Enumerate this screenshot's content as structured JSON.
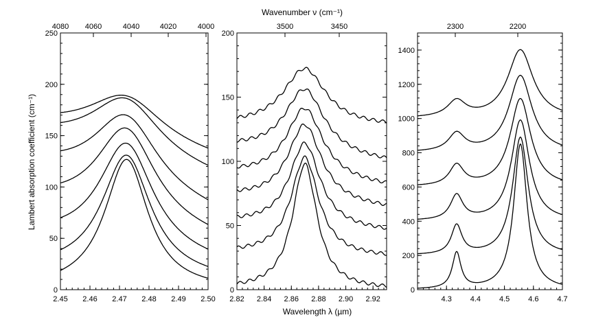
{
  "chart_data": {
    "type": "line",
    "top_label": "Wavenumber ν (cm⁻¹)",
    "bottom_label": "Wavelength λ (µm)",
    "y_label": "Lambert absorption coefficient (cm⁻¹)",
    "panels": [
      {
        "id": "left",
        "xlim": [
          2.45,
          2.5
        ],
        "ylim": [
          0,
          250
        ],
        "x_ticks": [
          "2.45",
          "2.46",
          "2.47",
          "2.48",
          "2.49",
          "2.50"
        ],
        "y_ticks": [
          0,
          50,
          100,
          150,
          200,
          250
        ],
        "top_ticks": [
          "4080",
          "4060",
          "4040",
          "4020",
          "4000"
        ],
        "profile": {
          "peak": 2.4725,
          "width": 0.009,
          "shape": "single"
        },
        "series": [
          {
            "offset": 0,
            "amplitude": 136,
            "right": 0
          },
          {
            "offset": 18,
            "amplitude": 125,
            "right": 10
          },
          {
            "offset": 48,
            "amplitude": 112,
            "right": 26
          },
          {
            "offset": 82,
            "amplitude": 96,
            "right": 50
          },
          {
            "offset": 115,
            "amplitude": 78,
            "right": 75
          },
          {
            "offset": 145,
            "amplitude": 61,
            "right": 110
          },
          {
            "offset": 157,
            "amplitude": 48,
            "right": 128
          }
        ]
      },
      {
        "id": "middle",
        "xlim": [
          2.82,
          2.93
        ],
        "ylim": [
          0,
          200
        ],
        "x_ticks": [
          "2.82",
          "2.84",
          "2.86",
          "2.88",
          "2.90",
          "2.92"
        ],
        "y_ticks": [
          0,
          50,
          100,
          150,
          200
        ],
        "top_ticks": [
          "3500",
          "3450"
        ],
        "profile": {
          "peak": 2.87,
          "width": 0.011,
          "shape": "single"
        },
        "series": [
          {
            "offset": 0,
            "amplitude": 105,
            "right": 0
          },
          {
            "offset": 28,
            "amplitude": 82,
            "right": 25
          },
          {
            "offset": 52,
            "amplitude": 70,
            "right": 45
          },
          {
            "offset": 72,
            "amplitude": 65,
            "right": 63
          },
          {
            "offset": 90,
            "amplitude": 60,
            "right": 80
          },
          {
            "offset": 110,
            "amplitude": 55,
            "right": 99
          },
          {
            "offset": 128,
            "amplitude": 48,
            "right": 127
          }
        ]
      },
      {
        "id": "right",
        "xlim": [
          4.2,
          4.7
        ],
        "ylim": [
          0,
          1500
        ],
        "x_ticks": [
          "4.3",
          "4.4",
          "4.5",
          "4.6",
          "4.7"
        ],
        "y_ticks": [
          0,
          200,
          400,
          600,
          800,
          1000,
          1200,
          1400
        ],
        "top_ticks": [
          "2300",
          "2200"
        ],
        "profile": {
          "peak1": 4.335,
          "peak2": 4.555,
          "shape": "double"
        },
        "series": [
          {
            "offset": 0,
            "amp1": 210,
            "amp2": 850
          },
          {
            "offset": 200,
            "amp1": 170,
            "amp2": 690
          },
          {
            "offset": 400,
            "amp1": 145,
            "amp2": 590
          },
          {
            "offset": 600,
            "amp1": 120,
            "amp2": 515
          },
          {
            "offset": 800,
            "amp1": 105,
            "amp2": 450
          },
          {
            "offset": 1000,
            "amp1": 95,
            "amp2": 400
          }
        ]
      }
    ]
  }
}
